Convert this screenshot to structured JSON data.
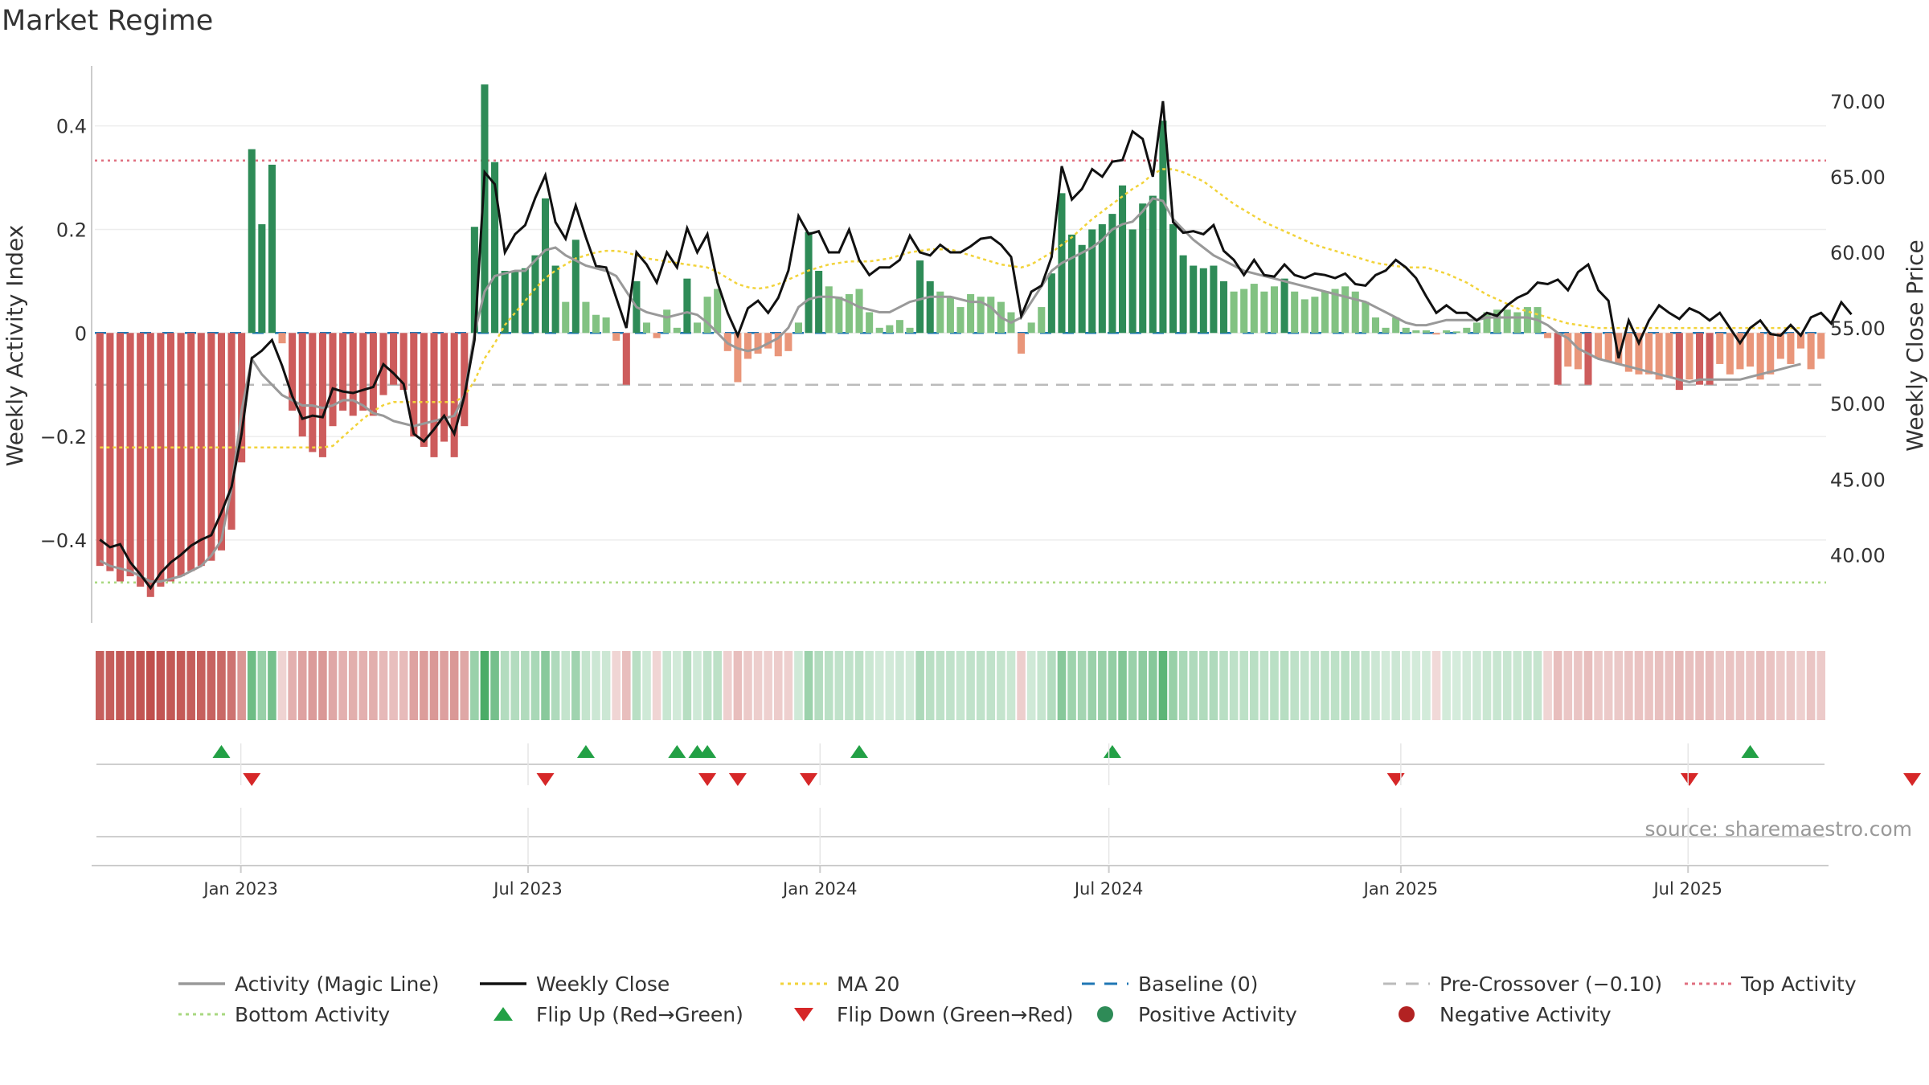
{
  "chart_data": {
    "type": "bar",
    "title": "Market Regime",
    "source": "source: sharemaestro.com",
    "left_axis": {
      "label": "Weekly Activity Index",
      "ticks": [
        0.4,
        0.2,
        0,
        -0.2,
        -0.4
      ],
      "tick_labels": [
        "0.4",
        "0.2",
        "0",
        "−0.2",
        "−0.4"
      ],
      "range": [
        -0.56,
        0.55
      ]
    },
    "right_axis": {
      "label": "Weekly Close Price",
      "ticks": [
        70,
        65,
        60,
        55,
        50,
        45,
        40
      ],
      "tick_labels": [
        "70.00",
        "65.00",
        "60.00",
        "55.00",
        "50.00",
        "45.00",
        "40.00"
      ],
      "range": [
        35.5,
        73.5
      ]
    },
    "x_axis": {
      "range": [
        "2022-10-01",
        "2025-09-26"
      ],
      "ticks": [
        "2023-01-01",
        "2023-07-01",
        "2024-01-01",
        "2024-07-01",
        "2025-01-01",
        "2025-07-01"
      ],
      "tick_labels": [
        "Jan 2023",
        "Jul 2023",
        "Jan 2024",
        "Jul 2024",
        "Jan 2025",
        "Jul 2025"
      ]
    },
    "reference_lines": {
      "top_activity": 0.333,
      "bottom_activity": -0.482,
      "baseline": 0,
      "pre_crossover": -0.1
    },
    "colors": {
      "pos_strong": "#2e8b57",
      "pos_light": "#82c282",
      "neg_strong": "#cd5c5c",
      "neg_light": "#e9967a",
      "close": "#111111",
      "activity_line": "#999999",
      "ma20": "#f2d33a",
      "baseline": "#1f77b4",
      "pre_crossover": "#bbbbbb",
      "top": "#e07080",
      "bottom": "#a8d880",
      "flip_up": "#22a045",
      "flip_down": "#d62728",
      "regime_pos": "#41a85f",
      "regime_neg": "#c0504d"
    },
    "legend": [
      {
        "label": "Activity (Magic Line)",
        "marker": "line",
        "color": "#999999"
      },
      {
        "label": "Weekly Close",
        "marker": "line",
        "color": "#111111"
      },
      {
        "label": "MA 20",
        "marker": "dotted",
        "color": "#f2d33a"
      },
      {
        "label": "Baseline (0)",
        "marker": "dashed",
        "color": "#1f77b4"
      },
      {
        "label": "Pre-Crossover (−0.10)",
        "marker": "dashed",
        "color": "#bbbbbb"
      },
      {
        "label": "Top Activity",
        "marker": "dotted",
        "color": "#e07080"
      },
      {
        "label": "Bottom Activity",
        "marker": "dotted",
        "color": "#a8d880"
      },
      {
        "label": "Flip Up (Red→Green)",
        "marker": "triangle-up",
        "color": "#22a045"
      },
      {
        "label": "Flip Down (Green→Red)",
        "marker": "triangle-down",
        "color": "#d62728"
      },
      {
        "label": "Positive Activity",
        "marker": "circle",
        "color": "#2e8b57"
      },
      {
        "label": "Negative Activity",
        "marker": "circle",
        "color": "#b22222"
      }
    ],
    "flip_up_weeks": [
      12,
      48,
      57,
      59,
      60,
      75,
      100,
      163
    ],
    "flip_down_weeks": [
      15,
      44,
      60,
      63,
      70,
      128,
      157,
      179
    ],
    "activity": [
      -0.45,
      -0.46,
      -0.48,
      -0.47,
      -0.49,
      -0.51,
      -0.49,
      -0.48,
      -0.47,
      -0.46,
      -0.45,
      -0.44,
      -0.42,
      -0.38,
      -0.25,
      0.355,
      0.21,
      0.325,
      -0.02,
      -0.15,
      -0.2,
      -0.23,
      -0.24,
      -0.18,
      -0.15,
      -0.16,
      -0.15,
      -0.16,
      -0.12,
      -0.1,
      -0.11,
      -0.2,
      -0.22,
      -0.24,
      -0.21,
      -0.24,
      -0.18,
      0.205,
      0.48,
      0.33,
      0.12,
      0.12,
      0.125,
      0.15,
      0.26,
      0.13,
      0.06,
      0.18,
      0.06,
      0.035,
      0.03,
      -0.015,
      -0.1,
      0.1,
      0.02,
      -0.01,
      0.045,
      0.01,
      0.105,
      0.02,
      0.07,
      0.085,
      -0.035,
      -0.095,
      -0.05,
      -0.04,
      -0.03,
      -0.045,
      -0.035,
      0.02,
      0.195,
      0.12,
      0.09,
      0.07,
      0.075,
      0.085,
      0.04,
      0.01,
      0.015,
      0.025,
      0.01,
      0.14,
      0.1,
      0.08,
      0.07,
      0.05,
      0.075,
      0.07,
      0.07,
      0.06,
      0.04,
      -0.04,
      0.02,
      0.05,
      0.115,
      0.27,
      0.19,
      0.17,
      0.2,
      0.21,
      0.23,
      0.285,
      0.2,
      0.25,
      0.265,
      0.41,
      0.21,
      0.15,
      0.13,
      0.125,
      0.13,
      0.1,
      0.08,
      0.085,
      0.095,
      0.08,
      0.09,
      0.105,
      0.08,
      0.065,
      0.07,
      0.08,
      0.085,
      0.09,
      0.08,
      0.06,
      0.03,
      0.01,
      0.03,
      0.01,
      0.005,
      0.005,
      -0.003,
      0.005,
      0.003,
      0.01,
      0.02,
      0.04,
      0.045,
      0.045,
      0.04,
      0.05,
      0.05,
      -0.01,
      -0.1,
      -0.065,
      -0.07,
      -0.1,
      -0.05,
      -0.055,
      -0.06,
      -0.075,
      -0.08,
      -0.08,
      -0.09,
      -0.085,
      -0.11,
      -0.09,
      -0.1,
      -0.1,
      -0.06,
      -0.08,
      -0.07,
      -0.065,
      -0.09,
      -0.08,
      -0.05,
      -0.06,
      -0.03,
      -0.07,
      -0.05
    ],
    "close": [
      41.0,
      40.5,
      40.7,
      39.5,
      38.7,
      37.8,
      38.8,
      39.5,
      40.0,
      40.6,
      41.0,
      41.3,
      42.8,
      44.5,
      48.0,
      53.0,
      53.5,
      54.2,
      52.5,
      50.5,
      49.0,
      49.2,
      49.1,
      51.0,
      50.8,
      50.7,
      50.9,
      51.1,
      52.6,
      52.0,
      51.3,
      48.0,
      47.5,
      48.3,
      49.2,
      48.0,
      50.5,
      54.2,
      65.3,
      64.5,
      60.0,
      61.2,
      61.8,
      63.6,
      65.1,
      62.0,
      60.9,
      63.1,
      61.0,
      59.1,
      59.0,
      57.0,
      55.0,
      60.0,
      59.2,
      58.0,
      60.0,
      59.0,
      61.6,
      60.0,
      61.2,
      58.0,
      56.0,
      54.5,
      56.3,
      56.8,
      56.0,
      57.0,
      58.8,
      62.4,
      61.2,
      61.4,
      60.0,
      60.0,
      61.5,
      59.5,
      58.5,
      59.0,
      59.0,
      59.5,
      61.1,
      60.0,
      59.8,
      60.5,
      60.0,
      60.0,
      60.4,
      60.9,
      61.0,
      60.5,
      59.7,
      55.8,
      57.4,
      57.8,
      59.7,
      65.7,
      63.5,
      64.2,
      65.5,
      65.0,
      66.0,
      66.1,
      68.0,
      67.5,
      65.0,
      70.0,
      62.0,
      61.3,
      61.4,
      61.2,
      61.8,
      60.1,
      59.5,
      58.5,
      59.5,
      58.5,
      58.4,
      59.2,
      58.5,
      58.3,
      58.6,
      58.5,
      58.3,
      58.6,
      57.9,
      57.8,
      58.5,
      58.8,
      59.5,
      59.0,
      58.3,
      57.1,
      56.0,
      56.5,
      56.0,
      56.0,
      55.5,
      56.0,
      55.8,
      56.5,
      57.0,
      57.3,
      58.0,
      57.9,
      58.2,
      57.5,
      58.7,
      59.2,
      57.5,
      56.8,
      53.0,
      55.5,
      54.0,
      55.5,
      56.5,
      56.0,
      55.6,
      56.3,
      56.0,
      55.5,
      56.0,
      55.0,
      54.0,
      55.0,
      55.5,
      54.6,
      54.5,
      55.2,
      54.5,
      55.7,
      56.0,
      55.3,
      56.7,
      55.9
    ],
    "ma20": [
      47.1,
      47.1,
      47.1,
      47.1,
      47.1,
      47.1,
      47.1,
      47.1,
      47.1,
      47.1,
      47.1,
      47.1,
      47.1,
      47.1,
      47.1,
      47.1,
      47.1,
      47.1,
      47.1,
      47.1,
      47.1,
      47.1,
      47.1,
      47.2,
      47.8,
      48.4,
      49.0,
      49.5,
      49.9,
      50.1,
      50.1,
      50.1,
      50.1,
      50.1,
      50.1,
      50.1,
      50.5,
      51.5,
      53.0,
      54.0,
      55.2,
      56.0,
      56.8,
      57.6,
      58.3,
      58.8,
      59.2,
      59.6,
      59.8,
      60.0,
      60.1,
      60.1,
      60.0,
      59.8,
      59.6,
      59.5,
      59.4,
      59.3,
      59.2,
      59.1,
      59.0,
      58.7,
      58.3,
      57.9,
      57.7,
      57.6,
      57.7,
      57.9,
      58.2,
      58.5,
      58.8,
      59.0,
      59.2,
      59.3,
      59.4,
      59.4,
      59.4,
      59.5,
      59.6,
      59.8,
      60.0,
      60.1,
      60.2,
      60.2,
      60.2,
      60.0,
      59.8,
      59.6,
      59.4,
      59.2,
      59.1,
      59.0,
      59.2,
      59.6,
      60.0,
      60.5,
      61.0,
      61.6,
      62.2,
      62.7,
      63.2,
      63.7,
      64.2,
      64.6,
      65.2,
      65.5,
      65.5,
      65.3,
      65.0,
      64.7,
      64.2,
      63.7,
      63.2,
      62.8,
      62.4,
      62.0,
      61.7,
      61.4,
      61.1,
      60.8,
      60.5,
      60.3,
      60.1,
      59.9,
      59.7,
      59.5,
      59.3,
      59.2,
      59.1,
      59.0,
      59.0,
      59.0,
      58.8,
      58.6,
      58.3,
      58.0,
      57.6,
      57.2,
      56.9,
      56.6,
      56.3,
      56.1,
      55.9,
      55.7,
      55.5,
      55.3,
      55.2,
      55.1,
      55.0,
      55.0,
      55.0,
      55.0,
      55.0,
      55.0,
      55.0,
      55.0,
      55.0,
      55.0,
      55.0,
      55.0,
      55.0,
      55.0,
      55.0,
      55.0,
      55.0,
      55.0,
      55.0,
      55.0,
      55.0
    ],
    "magic": [
      -0.44,
      -0.45,
      -0.455,
      -0.46,
      -0.47,
      -0.48,
      -0.48,
      -0.475,
      -0.47,
      -0.46,
      -0.45,
      -0.43,
      -0.4,
      -0.3,
      -0.15,
      -0.05,
      -0.08,
      -0.1,
      -0.12,
      -0.13,
      -0.14,
      -0.14,
      -0.145,
      -0.14,
      -0.13,
      -0.13,
      -0.14,
      -0.155,
      -0.16,
      -0.17,
      -0.175,
      -0.18,
      -0.175,
      -0.17,
      -0.165,
      -0.16,
      -0.12,
      0.0,
      0.08,
      0.11,
      0.115,
      0.12,
      0.12,
      0.14,
      0.16,
      0.165,
      0.15,
      0.14,
      0.13,
      0.125,
      0.12,
      0.11,
      0.08,
      0.05,
      0.04,
      0.035,
      0.03,
      0.035,
      0.04,
      0.035,
      0.02,
      0.0,
      -0.02,
      -0.03,
      -0.035,
      -0.03,
      -0.02,
      -0.01,
      0.01,
      0.05,
      0.065,
      0.07,
      0.07,
      0.068,
      0.06,
      0.05,
      0.045,
      0.04,
      0.04,
      0.05,
      0.06,
      0.065,
      0.07,
      0.07,
      0.07,
      0.065,
      0.06,
      0.06,
      0.05,
      0.03,
      0.02,
      0.03,
      0.06,
      0.09,
      0.12,
      0.135,
      0.145,
      0.155,
      0.165,
      0.18,
      0.2,
      0.21,
      0.215,
      0.235,
      0.26,
      0.255,
      0.22,
      0.2,
      0.18,
      0.165,
      0.15,
      0.14,
      0.13,
      0.12,
      0.115,
      0.11,
      0.105,
      0.1,
      0.095,
      0.09,
      0.085,
      0.08,
      0.075,
      0.07,
      0.065,
      0.06,
      0.05,
      0.04,
      0.03,
      0.02,
      0.015,
      0.015,
      0.02,
      0.025,
      0.025,
      0.025,
      0.025,
      0.03,
      0.03,
      0.03,
      0.03,
      0.03,
      0.025,
      0.015,
      0.0,
      -0.01,
      -0.03,
      -0.04,
      -0.05,
      -0.055,
      -0.06,
      -0.065,
      -0.07,
      -0.075,
      -0.08,
      -0.085,
      -0.09,
      -0.095,
      -0.09,
      -0.09,
      -0.09,
      -0.09,
      -0.09,
      -0.085,
      -0.08,
      -0.075,
      -0.07,
      -0.065,
      -0.06
    ]
  }
}
